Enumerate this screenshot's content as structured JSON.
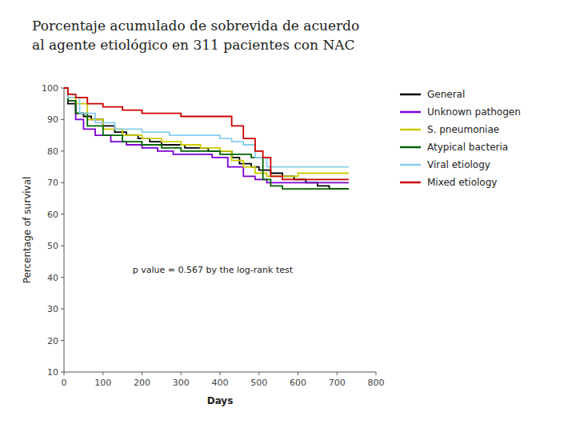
{
  "chart_data": {
    "type": "line",
    "line_style": "step",
    "title": "Porcentaje acumulado de sobrevida de acuerdo\nal agente etiológico en 311 pacientes con NAC",
    "x_label": "Days",
    "y_label": "Percentage of survival",
    "xlim": [
      0,
      800
    ],
    "ylim": [
      10,
      100
    ],
    "xticks": [
      0,
      100,
      200,
      300,
      400,
      500,
      600,
      700,
      800
    ],
    "yticks": [
      10,
      20,
      30,
      40,
      50,
      60,
      70,
      80,
      90,
      100
    ],
    "grid": false,
    "legend": "right",
    "annotations": [
      "p value = 0.567 by the log-rank test"
    ],
    "series": [
      {
        "name": "General",
        "color": "#000000",
        "x": [
          0,
          10,
          30,
          50,
          70,
          100,
          130,
          160,
          190,
          220,
          250,
          280,
          310,
          340,
          370,
          400,
          430,
          450,
          480,
          500,
          530,
          560,
          590,
          620,
          650,
          680,
          710,
          730
        ],
        "values": [
          100,
          95,
          92,
          91,
          90,
          88,
          86,
          85,
          84,
          83,
          82,
          82,
          81,
          81,
          80,
          80,
          78,
          76,
          75,
          74,
          73,
          72,
          71,
          70,
          69,
          68,
          68,
          68
        ]
      },
      {
        "name": "Unknown pathogen",
        "color": "#7B00D4",
        "x": [
          0,
          10,
          30,
          50,
          80,
          120,
          160,
          200,
          240,
          280,
          330,
          380,
          420,
          460,
          490,
          520,
          560,
          600,
          650,
          700,
          730
        ],
        "values": [
          100,
          96,
          90,
          87,
          85,
          83,
          82,
          81,
          80,
          79,
          79,
          78,
          75,
          72,
          71,
          70,
          70,
          70,
          70,
          70,
          70
        ]
      },
      {
        "name": "S. pneumoniae",
        "color": "#CCCC00",
        "x": [
          0,
          10,
          30,
          60,
          100,
          150,
          200,
          250,
          300,
          350,
          400,
          430,
          460,
          490,
          520,
          560,
          600,
          650,
          700,
          730
        ],
        "values": [
          100,
          97,
          95,
          90,
          87,
          85,
          84,
          83,
          82,
          81,
          80,
          77,
          75,
          73,
          72,
          72,
          73,
          73,
          73,
          73
        ]
      },
      {
        "name": "Atypical bacteria",
        "color": "#006400",
        "x": [
          0,
          10,
          30,
          60,
          100,
          150,
          200,
          250,
          300,
          350,
          400,
          440,
          480,
          510,
          530,
          560,
          600,
          650,
          700,
          730
        ],
        "values": [
          100,
          96,
          92,
          88,
          85,
          83,
          82,
          81,
          80,
          80,
          79,
          79,
          78,
          71,
          69,
          68,
          68,
          68,
          68,
          68
        ]
      },
      {
        "name": "Viral etiology",
        "color": "#87CEEB",
        "x": [
          0,
          10,
          40,
          80,
          130,
          200,
          270,
          350,
          400,
          430,
          460,
          490,
          520,
          560,
          600,
          650,
          700,
          730
        ],
        "values": [
          100,
          97,
          92,
          89,
          87,
          86,
          85,
          85,
          84,
          83,
          82,
          78,
          75,
          75,
          75,
          75,
          75,
          75
        ]
      },
      {
        "name": "Mixed etiology",
        "color": "#CC0000",
        "x": [
          0,
          10,
          30,
          60,
          100,
          150,
          200,
          250,
          300,
          350,
          400,
          430,
          460,
          490,
          510,
          530,
          560,
          600,
          650,
          700,
          730
        ],
        "values": [
          100,
          98,
          97,
          95,
          94,
          93,
          92,
          92,
          91,
          91,
          91,
          88,
          84,
          80,
          78,
          72,
          71,
          71,
          71,
          71,
          71
        ]
      }
    ]
  }
}
